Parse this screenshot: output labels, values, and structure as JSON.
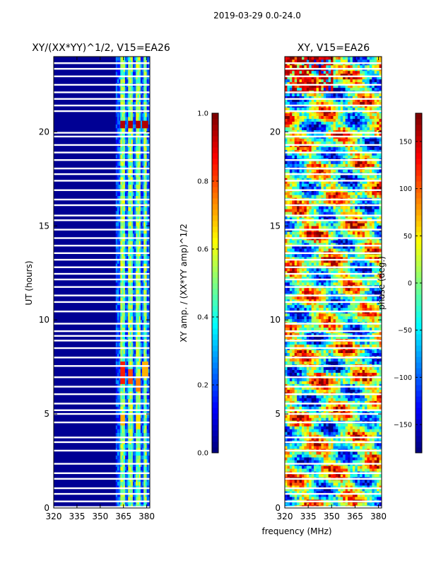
{
  "chart_data": [
    {
      "type": "heatmap",
      "panel": "amplitude",
      "title": "XY/(XX*YY)^1/2, V15=EA26",
      "xlabel": "frequency (MHz)",
      "ylabel": "UT (hours)",
      "xlim": [
        320,
        382
      ],
      "ylim": [
        0,
        24
      ],
      "xticks": [
        320,
        335,
        350,
        365,
        380
      ],
      "yticks": [
        0,
        5,
        10,
        15,
        20
      ],
      "background_value": 0.0,
      "active_band_MHz": [
        360,
        382
      ],
      "bright_channels_MHz": [
        364.5,
        369.5,
        374.5,
        379
      ],
      "high_value_patches": [
        {
          "freq": 364.5,
          "t_start": 20.2,
          "t_end": 20.6,
          "value": 0.95
        },
        {
          "freq": 369.5,
          "t_start": 20.2,
          "t_end": 20.6,
          "value": 0.95
        },
        {
          "freq": 374.5,
          "t_start": 20.2,
          "t_end": 20.6,
          "value": 0.95
        },
        {
          "freq": 379,
          "t_start": 20.2,
          "t_end": 20.6,
          "value": 0.95
        },
        {
          "freq": 364.5,
          "t_start": 6.6,
          "t_end": 7.7,
          "value": 0.85
        },
        {
          "freq": 369.5,
          "t_start": 6.5,
          "t_end": 7.4,
          "value": 0.8
        },
        {
          "freq": 374.5,
          "t_start": 6.2,
          "t_end": 7.0,
          "value": 0.75
        },
        {
          "freq": 379,
          "t_start": 7.0,
          "t_end": 7.7,
          "value": 0.7
        },
        {
          "freq": 364.5,
          "t_start": 4.3,
          "t_end": 4.9,
          "value": 0.7
        },
        {
          "freq": 374.5,
          "t_start": 4.2,
          "t_end": 4.9,
          "value": 0.65
        }
      ],
      "colorbar": {
        "label": "XY amp. / (XX*YY amp)^1/2",
        "range": [
          0.0,
          1.0
        ],
        "ticks": [
          "0.0",
          "0.2",
          "0.4",
          "0.6",
          "0.8",
          "1.0"
        ]
      }
    },
    {
      "type": "heatmap",
      "panel": "phase",
      "title": "XY, V15=EA26",
      "xlabel": "frequency (MHz)",
      "ylabel": "",
      "xlim": [
        320,
        382
      ],
      "ylim": [
        0,
        24
      ],
      "xticks": [
        320,
        335,
        350,
        365,
        380
      ],
      "yticks": [
        0,
        5,
        10,
        15,
        20
      ],
      "colorbar": {
        "label": "phase (deg.)",
        "range": [
          -180,
          180
        ],
        "ticks": [
          "150",
          "100",
          "50",
          "0",
          "−50",
          "−100",
          "−150"
        ]
      }
    }
  ],
  "suptitle": "2019-03-29 0.0-24.0",
  "flagged_time_rows_hours": [
    0.05,
    0.35,
    0.75,
    1.05,
    1.55,
    1.85,
    2.35,
    3.05,
    3.5,
    3.75,
    4.55,
    5.0,
    5.2,
    5.55,
    6.05,
    6.45,
    6.95,
    7.55,
    8.0,
    8.5,
    8.9,
    9.15,
    9.4,
    9.8,
    10.45,
    10.95,
    11.3,
    11.75,
    12.15,
    12.45,
    12.8,
    13.2,
    13.55,
    13.95,
    14.35,
    14.8,
    15.3,
    15.55,
    16.1,
    16.4,
    16.9,
    17.4,
    17.75,
    18.05,
    18.5,
    18.9,
    19.3,
    19.75,
    19.95,
    21.1,
    21.4,
    21.75,
    22.1,
    22.5,
    22.95,
    23.35,
    23.65
  ]
}
